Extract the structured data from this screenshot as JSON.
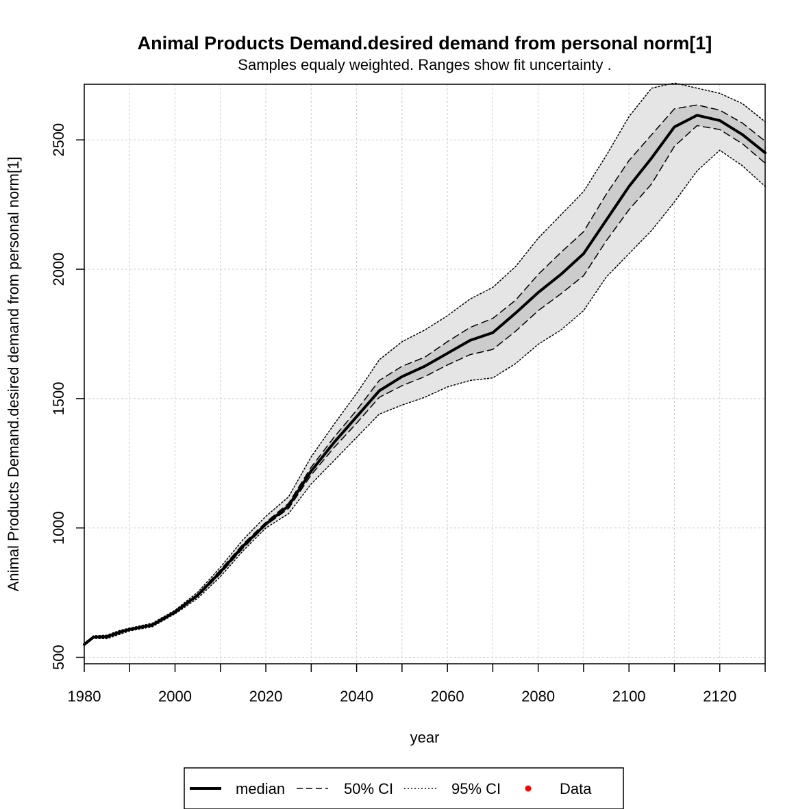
{
  "chart_data": {
    "type": "line",
    "title": "Animal Products Demand.desired demand from personal norm[1]",
    "subtitle": "Samples equaly weighted. Ranges show  fit uncertainty .",
    "xlabel": "year",
    "ylabel": "Animal Products Demand.desired demand from personal norm[1]",
    "xlim": [
      1980,
      2130
    ],
    "ylim": [
      475,
      2715
    ],
    "x_ticks": [
      1980,
      2000,
      2020,
      2040,
      2060,
      2080,
      2100,
      2120
    ],
    "x_minor_ticks": [
      1990,
      2010,
      2030,
      2050,
      2070,
      2090,
      2110,
      2130
    ],
    "y_ticks": [
      500,
      1000,
      1500,
      2000,
      2500
    ],
    "grid": true,
    "legend_position": "bottom",
    "colors": {
      "band95": "#e5e5e5",
      "band50": "#cccccc",
      "line": "#000000",
      "data_point": "#ff0000",
      "grid": "#cccccc"
    },
    "x": [
      1980,
      1982,
      1985,
      1988,
      1990,
      1995,
      2000,
      2005,
      2010,
      2015,
      2020,
      2025,
      2030,
      2035,
      2040,
      2045,
      2050,
      2055,
      2060,
      2065,
      2070,
      2075,
      2080,
      2085,
      2090,
      2095,
      2100,
      2105,
      2110,
      2115,
      2120,
      2125,
      2130
    ],
    "series": [
      {
        "name": "median",
        "style": "solid",
        "values": [
          550,
          578,
          580,
          598,
          608,
          625,
          675,
          740,
          830,
          930,
          1015,
          1085,
          1220,
          1330,
          1430,
          1530,
          1585,
          1625,
          1675,
          1725,
          1755,
          1830,
          1910,
          1980,
          2060,
          2190,
          2320,
          2430,
          2550,
          2595,
          2575,
          2520,
          2450
        ]
      },
      {
        "name": "50% CI upper",
        "style": "dashed",
        "values": [
          552,
          580,
          583,
          602,
          610,
          628,
          678,
          745,
          838,
          938,
          1022,
          1095,
          1235,
          1350,
          1455,
          1570,
          1625,
          1660,
          1720,
          1775,
          1810,
          1880,
          1980,
          2065,
          2145,
          2290,
          2420,
          2520,
          2620,
          2635,
          2615,
          2565,
          2495
        ]
      },
      {
        "name": "50% CI lower",
        "style": "dashed",
        "values": [
          548,
          576,
          576,
          594,
          606,
          622,
          672,
          735,
          823,
          922,
          1010,
          1075,
          1205,
          1310,
          1405,
          1505,
          1550,
          1585,
          1630,
          1670,
          1690,
          1760,
          1840,
          1905,
          1975,
          2110,
          2230,
          2330,
          2475,
          2555,
          2540,
          2485,
          2410
        ]
      },
      {
        "name": "95% CI upper",
        "style": "dotted",
        "values": [
          555,
          583,
          586,
          605,
          613,
          632,
          682,
          752,
          848,
          955,
          1045,
          1120,
          1275,
          1400,
          1520,
          1650,
          1720,
          1765,
          1820,
          1885,
          1930,
          2010,
          2120,
          2210,
          2300,
          2440,
          2590,
          2700,
          2720,
          2700,
          2680,
          2640,
          2570
        ]
      },
      {
        "name": "95% CI lower",
        "style": "dotted",
        "values": [
          545,
          573,
          572,
          590,
          602,
          618,
          668,
          728,
          812,
          912,
          1000,
          1055,
          1170,
          1260,
          1350,
          1440,
          1475,
          1505,
          1545,
          1570,
          1580,
          1635,
          1710,
          1765,
          1840,
          1970,
          2060,
          2150,
          2260,
          2380,
          2460,
          2400,
          2320
        ]
      }
    ],
    "legend": [
      {
        "label": "median",
        "style": "solid"
      },
      {
        "label": "50% CI",
        "style": "dashed"
      },
      {
        "label": "95% CI",
        "style": "dotted"
      },
      {
        "label": "Data",
        "style": "point"
      }
    ]
  }
}
